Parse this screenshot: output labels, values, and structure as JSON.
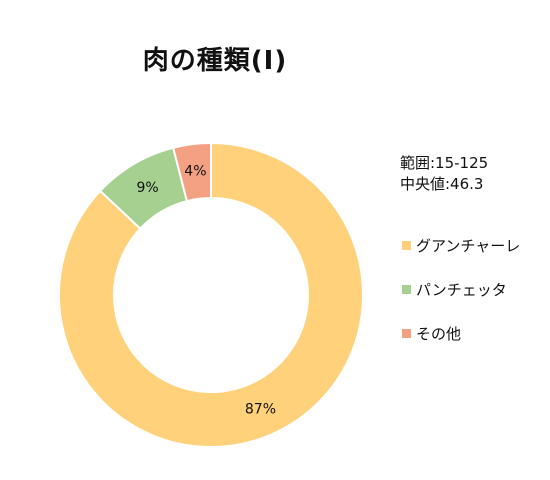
{
  "chart_data": {
    "type": "pie",
    "title": "肉の種類(I)",
    "donut": true,
    "categories": [
      "グアンチャーレ",
      "パンチェッタ",
      "その他"
    ],
    "values": [
      87,
      9,
      4
    ],
    "labels": [
      "87%",
      "9%",
      "4%"
    ],
    "colors": [
      "#FFD17A",
      "#A5D08F",
      "#F4A183"
    ],
    "legend_position": "right",
    "annotations": [
      "範囲:15-125",
      "中央値:46.3"
    ]
  }
}
